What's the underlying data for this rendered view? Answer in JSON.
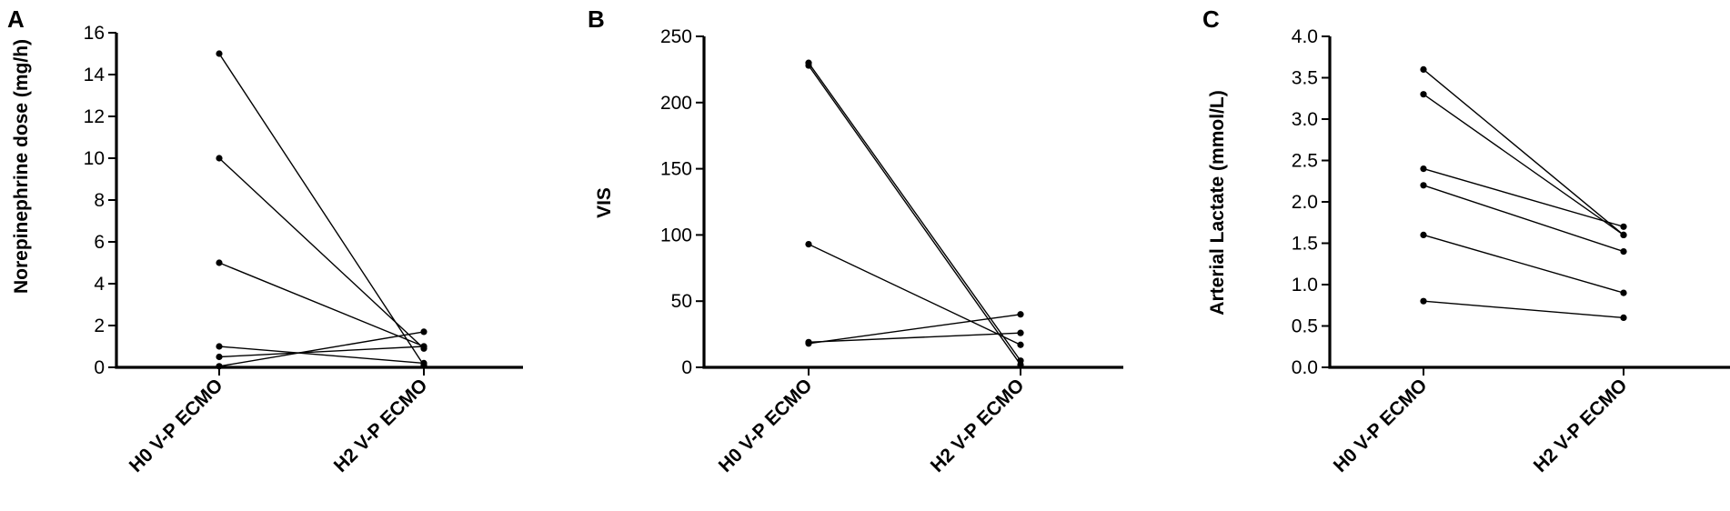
{
  "chart_data": [
    {
      "panel": "A",
      "type": "line",
      "ylabel": "Norepinephrine dose (mg/h)",
      "categories": [
        "H0 V-P ECMO",
        "H2 V-P ECMO"
      ],
      "ylim": [
        0,
        16
      ],
      "yticks": [
        "0",
        "2",
        "4",
        "6",
        "8",
        "10",
        "12",
        "14",
        "16"
      ],
      "series": [
        {
          "values": [
            15,
            0.1
          ]
        },
        {
          "values": [
            10,
            0.9
          ]
        },
        {
          "values": [
            5,
            1.0
          ]
        },
        {
          "values": [
            1.0,
            0.2
          ]
        },
        {
          "values": [
            0.5,
            1.0
          ]
        },
        {
          "values": [
            0.05,
            1.7
          ]
        }
      ]
    },
    {
      "panel": "B",
      "type": "line",
      "ylabel": "VIS",
      "categories": [
        "H0 V-P ECMO",
        "H2 V-P ECMO"
      ],
      "ylim": [
        0,
        250
      ],
      "yticks": [
        "0",
        "50",
        "100",
        "150",
        "200",
        "250"
      ],
      "series": [
        {
          "values": [
            230,
            5
          ]
        },
        {
          "values": [
            228,
            2
          ]
        },
        {
          "values": [
            93,
            17
          ]
        },
        {
          "values": [
            19,
            26
          ]
        },
        {
          "values": [
            18,
            40
          ]
        }
      ]
    },
    {
      "panel": "C",
      "type": "line",
      "ylabel": "Arterial Lactate (mmol/L)",
      "categories": [
        "H0 V-P ECMO",
        "H2 V-P ECMO"
      ],
      "ylim": [
        0,
        4
      ],
      "yticks": [
        "0.0",
        "0.5",
        "1.0",
        "1.5",
        "2.0",
        "2.5",
        "3.0",
        "3.5",
        "4.0"
      ],
      "series": [
        {
          "values": [
            3.6,
            1.6
          ]
        },
        {
          "values": [
            3.3,
            1.6
          ]
        },
        {
          "values": [
            2.4,
            1.7
          ]
        },
        {
          "values": [
            2.2,
            1.4
          ]
        },
        {
          "values": [
            1.6,
            0.9
          ]
        },
        {
          "values": [
            0.8,
            0.6
          ]
        }
      ]
    }
  ]
}
